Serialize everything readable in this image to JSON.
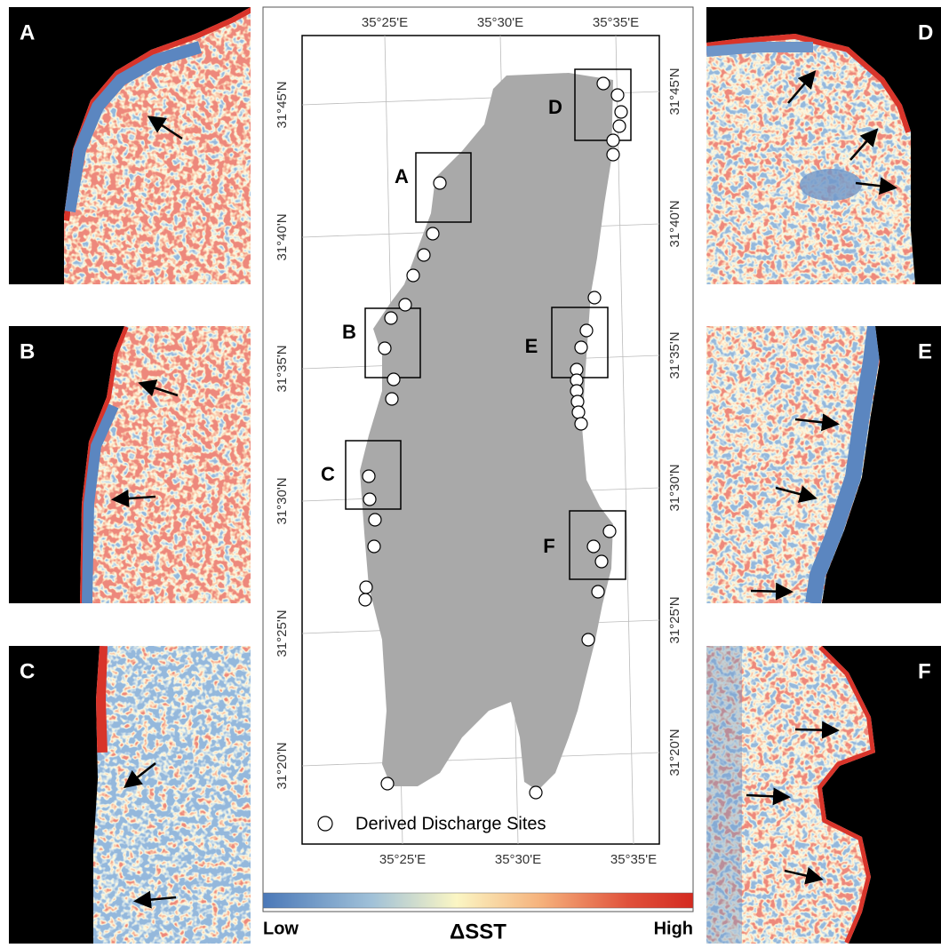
{
  "panels": [
    {
      "label": "A"
    },
    {
      "label": "B"
    },
    {
      "label": "C"
    },
    {
      "label": "D"
    },
    {
      "label": "E"
    },
    {
      "label": "F"
    }
  ],
  "map": {
    "box_labels": [
      "A",
      "D",
      "B",
      "E",
      "C",
      "F"
    ],
    "lon_labels_top": [
      "35°25'E",
      "35°30'E",
      "35°35'E"
    ],
    "lon_labels_bottom": [
      "35°25'E",
      "35°30'E",
      "35°35'E"
    ],
    "lat_labels_left": [
      "31°45'N",
      "31°40'N",
      "31°35'N",
      "31°30'N",
      "31°25'N",
      "31°20'N"
    ],
    "lat_labels_right": [
      "31°45'N",
      "31°40'N",
      "31°35'N",
      "31°30'N",
      "31°25'N",
      "31°20'N"
    ],
    "legend": "Derived Discharge Sites"
  },
  "colorbar": {
    "low": "Low",
    "title": "ΔSST",
    "high": "High"
  }
}
